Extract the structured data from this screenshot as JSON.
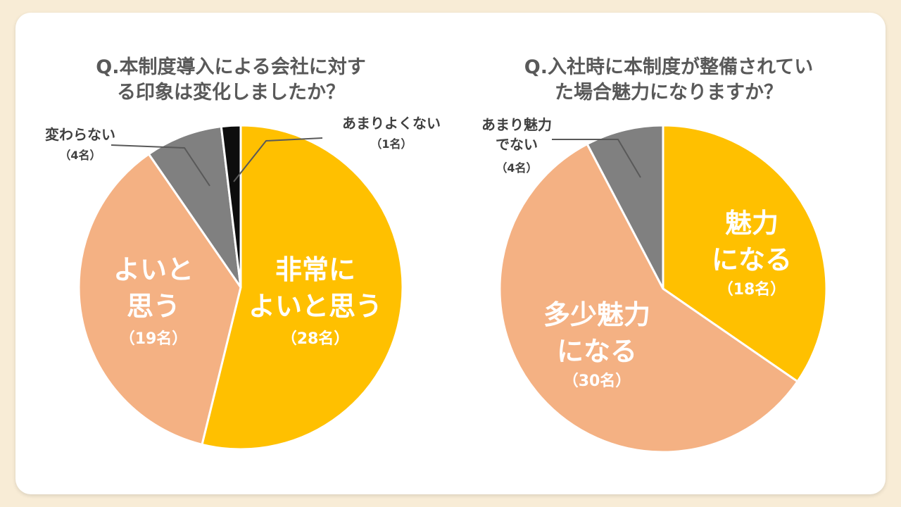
{
  "chart_data": [
    {
      "type": "pie",
      "title_lines": [
        "Q.本制度導入による会社に対す",
        "る印象は変化しましたか？"
      ],
      "slices": [
        {
          "label_lines": [
            "非常に",
            "よいと思う"
          ],
          "count_label": "（28名）",
          "value": 28,
          "color": "#ffc000"
        },
        {
          "label_lines": [
            "よいと",
            "思う"
          ],
          "count_label": "（19名）",
          "value": 19,
          "color": "#f4b183"
        },
        {
          "label_lines": [
            "変わらない"
          ],
          "count_label": "（4名）",
          "value": 4,
          "color": "#808080"
        },
        {
          "label_lines": [
            "あまりよくない"
          ],
          "count_label": "（1名）",
          "value": 1,
          "color": "#0d0d0d"
        }
      ]
    },
    {
      "type": "pie",
      "title_lines": [
        "Q.入社時に本制度が整備されてい",
        "た場合魅力になりますか？"
      ],
      "slices": [
        {
          "label_lines": [
            "魅力",
            "になる"
          ],
          "count_label": "（18名）",
          "value": 18,
          "color": "#ffc000"
        },
        {
          "label_lines": [
            "多少魅力",
            "になる"
          ],
          "count_label": "（30名）",
          "value": 30,
          "color": "#f4b183"
        },
        {
          "label_lines": [
            "あまり魅力",
            "でない"
          ],
          "count_label": "（4名）",
          "value": 4,
          "color": "#808080"
        }
      ]
    }
  ]
}
